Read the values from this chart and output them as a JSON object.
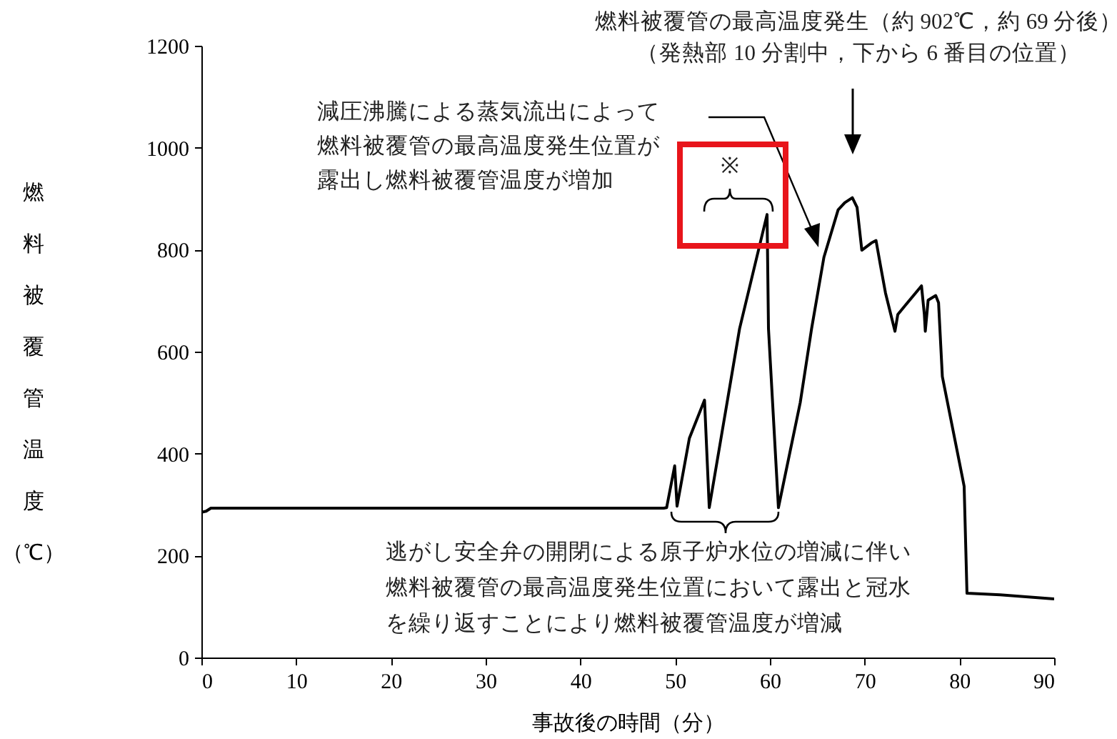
{
  "chart_data": {
    "type": "line",
    "xlabel": "事故後の時間（分）",
    "ylabel": "燃料被覆管温度（℃）",
    "xlim": [
      0,
      90
    ],
    "xticks": [
      0,
      10,
      20,
      30,
      40,
      50,
      60,
      70,
      80,
      90
    ],
    "ylim": [
      0,
      1200
    ],
    "yticks": [
      0,
      200,
      400,
      600,
      800,
      1000,
      1200
    ],
    "grid": false,
    "legend": false,
    "series": [
      {
        "color": "#000000",
        "x": [
          0,
          0.5,
          1,
          10,
          20,
          30,
          40,
          48.8,
          49.1,
          49.95,
          50.2,
          51.5,
          53.1,
          53.6,
          56.8,
          59.7,
          59.85,
          60.9,
          63.2,
          64.4,
          65.7,
          67.2,
          67.9,
          68.7,
          69.2,
          69.7,
          70.7,
          71.2,
          71.7,
          72.2,
          73.2,
          73.5,
          76.0,
          76.3,
          76.4,
          76.7,
          77.5,
          77.8,
          78.2,
          80.3,
          80.5,
          80.8,
          84.3,
          90
        ],
        "values": [
          285,
          287,
          293,
          293,
          293,
          293,
          293,
          293,
          294,
          376,
          297,
          430,
          505,
          294,
          645,
          869,
          645,
          294,
          500,
          645,
          785,
          878,
          892,
          902,
          883,
          799,
          813,
          818,
          766,
          715,
          640,
          673,
          729,
          673,
          640,
          701,
          710,
          696,
          551,
          355,
          336,
          126,
          123,
          115
        ]
      }
    ],
    "annotations": [
      "燃料被覆管の最高温度発生（約 902℃，約 69 分後）（発熱部 10 分割中，下から 6 番目の位置）",
      "減圧沸騰による蒸気流出によって燃料被覆管の最高温度発生位置が露出し燃料被覆管温度が増加",
      "※",
      "逃がし安全弁の開閉による原子炉水位の増減に伴い燃料被覆管の最高温度発生位置において露出と冠水を繰り返すことにより燃料被覆管温度が増減"
    ]
  }
}
